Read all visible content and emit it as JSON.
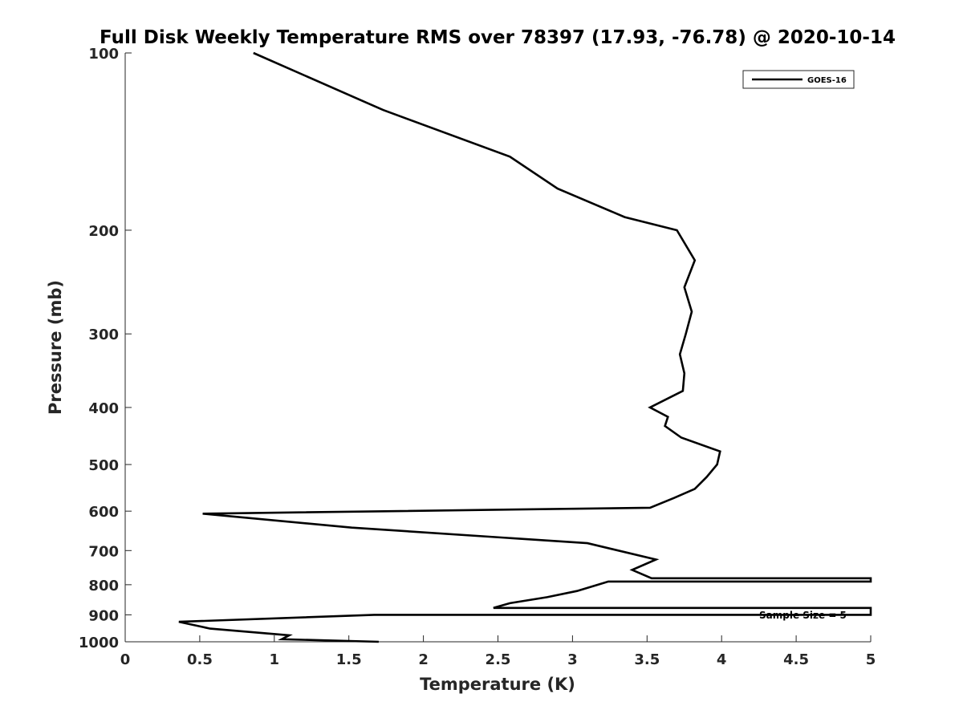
{
  "chart_data": {
    "type": "line",
    "title": "Full Disk Weekly Temperature RMS over 78397 (17.93, -76.78) @ 2020-10-14",
    "xlabel": "Temperature (K)",
    "ylabel": "Pressure (mb)",
    "xlim": [
      0,
      5
    ],
    "ylim": [
      100,
      1000
    ],
    "yscale": "log",
    "y_reversed": true,
    "xticks": [
      0,
      0.5,
      1,
      1.5,
      2,
      2.5,
      3,
      3.5,
      4,
      4.5,
      5
    ],
    "xtick_labels": [
      "0",
      "0.5",
      "1",
      "1.5",
      "2",
      "2.5",
      "3",
      "3.5",
      "4",
      "4.5",
      "5"
    ],
    "yticks": [
      100,
      200,
      300,
      400,
      500,
      600,
      700,
      800,
      900,
      1000
    ],
    "ytick_labels": [
      "100",
      "200",
      "300",
      "400",
      "500",
      "600",
      "700",
      "800",
      "900",
      "1000"
    ],
    "legend": {
      "position": "top-right",
      "entries": [
        "GOES-16"
      ]
    },
    "annotation": "Sample Size = 5",
    "series": [
      {
        "name": "GOES-16",
        "color": "#000000",
        "points": [
          [
            0.86,
            100
          ],
          [
            1.73,
            125
          ],
          [
            2.58,
            150
          ],
          [
            2.9,
            170
          ],
          [
            3.35,
            190
          ],
          [
            3.7,
            200
          ],
          [
            3.82,
            225
          ],
          [
            3.75,
            250
          ],
          [
            3.8,
            275
          ],
          [
            3.76,
            300
          ],
          [
            3.72,
            325
          ],
          [
            3.75,
            350
          ],
          [
            3.74,
            375
          ],
          [
            3.65,
            385
          ],
          [
            3.52,
            400
          ],
          [
            3.64,
            415
          ],
          [
            3.62,
            430
          ],
          [
            3.73,
            450
          ],
          [
            3.99,
            475
          ],
          [
            3.97,
            500
          ],
          [
            3.9,
            525
          ],
          [
            3.82,
            550
          ],
          [
            3.68,
            570
          ],
          [
            3.52,
            592
          ],
          [
            0.52,
            606
          ],
          [
            1.52,
            640
          ],
          [
            3.1,
            680
          ],
          [
            3.56,
            725
          ],
          [
            3.4,
            755
          ],
          [
            3.53,
            780
          ],
          [
            5.0,
            780
          ],
          [
            5.0,
            790
          ],
          [
            3.24,
            790
          ],
          [
            3.17,
            800
          ],
          [
            3.03,
            820
          ],
          [
            2.83,
            840
          ],
          [
            2.58,
            860
          ],
          [
            2.47,
            876
          ],
          [
            5.0,
            876
          ],
          [
            5.0,
            900
          ],
          [
            1.67,
            900
          ],
          [
            0.36,
            925
          ],
          [
            0.57,
            950
          ],
          [
            1.1,
            975
          ],
          [
            1.05,
            990
          ],
          [
            1.7,
            1000
          ]
        ]
      }
    ]
  }
}
